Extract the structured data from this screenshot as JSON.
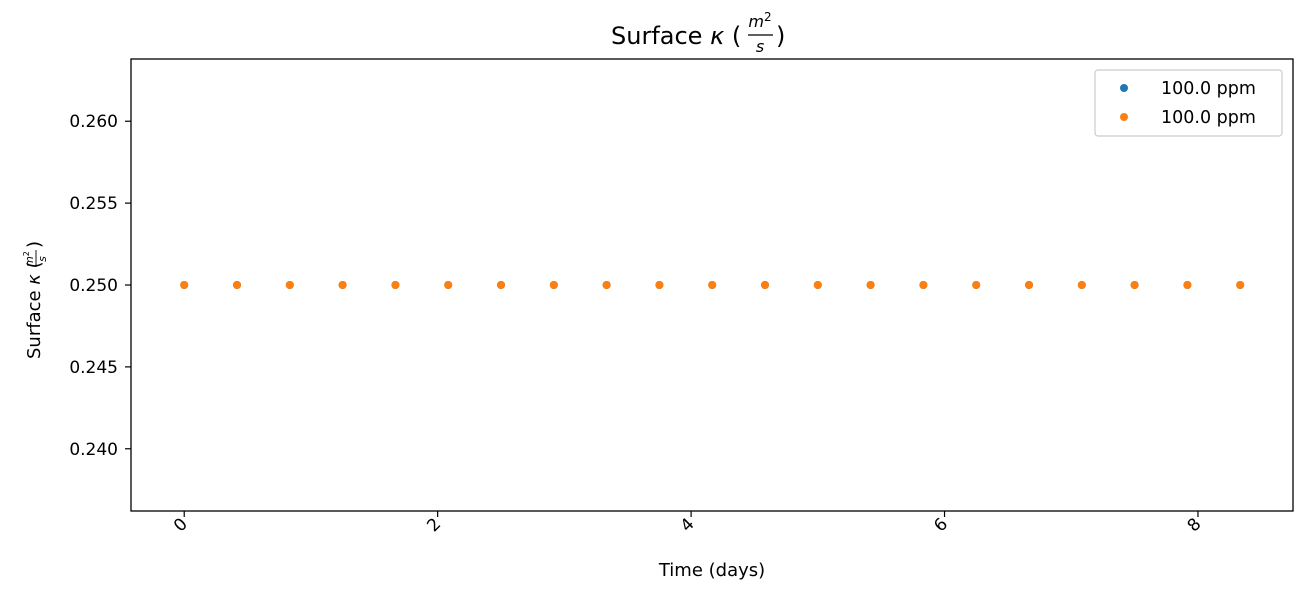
{
  "chart_data": {
    "type": "scatter",
    "title": "Surface κ (m²/s)",
    "xlabel": "Time (days)",
    "ylabel": "Surface κ (m²/s)",
    "xlim": [
      -0.42,
      8.75
    ],
    "ylim": [
      0.2362,
      0.2638
    ],
    "x_ticks": [
      "0",
      "2",
      "4",
      "6",
      "8"
    ],
    "y_ticks": [
      "0.240",
      "0.245",
      "0.250",
      "0.255",
      "0.260"
    ],
    "grid": false,
    "legend_position": "top-right",
    "series": [
      {
        "name": "100.0 ppm",
        "color": "#1f77b4",
        "x": [
          0,
          0.4167,
          0.8333,
          1.25,
          1.6667,
          2.0833,
          2.5,
          2.9167,
          3.3333,
          3.75,
          4.1667,
          4.5833,
          5,
          5.4167,
          5.8333,
          6.25,
          6.6667,
          7.0833,
          7.5,
          7.9167,
          8.3333
        ],
        "y": [
          0.25,
          0.25,
          0.25,
          0.25,
          0.25,
          0.25,
          0.25,
          0.25,
          0.25,
          0.25,
          0.25,
          0.25,
          0.25,
          0.25,
          0.25,
          0.25,
          0.25,
          0.25,
          0.25,
          0.25,
          0.25
        ]
      },
      {
        "name": "100.0 ppm",
        "color": "#ff7f0e",
        "x": [
          0,
          0.4167,
          0.8333,
          1.25,
          1.6667,
          2.0833,
          2.5,
          2.9167,
          3.3333,
          3.75,
          4.1667,
          4.5833,
          5,
          5.4167,
          5.8333,
          6.25,
          6.6667,
          7.0833,
          7.5,
          7.9167,
          8.3333
        ],
        "y": [
          0.25,
          0.25,
          0.25,
          0.25,
          0.25,
          0.25,
          0.25,
          0.25,
          0.25,
          0.25,
          0.25,
          0.25,
          0.25,
          0.25,
          0.25,
          0.25,
          0.25,
          0.25,
          0.25,
          0.25,
          0.25
        ]
      }
    ]
  }
}
